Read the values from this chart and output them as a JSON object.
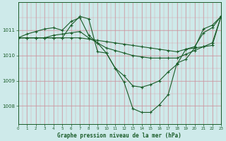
{
  "title": "Graphe pression niveau de la mer (hPa)",
  "bg_color": "#ceeaea",
  "plot_bg_color": "#ceeaea",
  "line_color": "#1a5c28",
  "xlim": [
    0,
    23
  ],
  "ylim": [
    1007.3,
    1012.1
  ],
  "yticks": [
    1008,
    1009,
    1010,
    1011
  ],
  "xticks": [
    0,
    1,
    2,
    3,
    4,
    5,
    6,
    7,
    8,
    9,
    10,
    11,
    12,
    13,
    14,
    15,
    16,
    17,
    18,
    19,
    20,
    21,
    22,
    23
  ],
  "series": [
    [
      1010.7,
      1010.7,
      1010.7,
      1010.7,
      1010.7,
      1010.7,
      1010.7,
      1010.7,
      1010.65,
      1010.6,
      1010.55,
      1010.5,
      1010.45,
      1010.4,
      1010.35,
      1010.3,
      1010.25,
      1010.2,
      1010.15,
      1010.25,
      1010.3,
      1010.35,
      1010.4,
      1011.55
    ],
    [
      1010.7,
      1010.7,
      1010.7,
      1010.7,
      1010.8,
      1010.85,
      1010.9,
      1010.95,
      1010.7,
      1010.5,
      1010.3,
      1010.2,
      1010.1,
      1010.0,
      1009.95,
      1009.9,
      1009.9,
      1009.9,
      1009.9,
      1010.05,
      1010.2,
      1010.35,
      1010.5,
      1011.55
    ],
    [
      1010.7,
      1010.85,
      1010.95,
      1011.05,
      1011.1,
      1011.0,
      1011.35,
      1011.5,
      1010.8,
      1010.5,
      1010.1,
      1009.5,
      1009.2,
      1008.8,
      1008.75,
      1008.85,
      1009.0,
      1009.35,
      1009.65,
      1010.25,
      1010.35,
      1010.9,
      1011.1,
      1011.55
    ],
    [
      1010.7,
      1010.7,
      1010.7,
      1010.7,
      1010.7,
      1010.7,
      1011.2,
      1011.55,
      1011.45,
      1010.15,
      1010.1,
      1009.5,
      1008.95,
      1007.9,
      1007.75,
      1007.75,
      1008.05,
      1008.45,
      1009.7,
      1009.85,
      1010.3,
      1011.05,
      1011.2,
      1011.55
    ]
  ]
}
